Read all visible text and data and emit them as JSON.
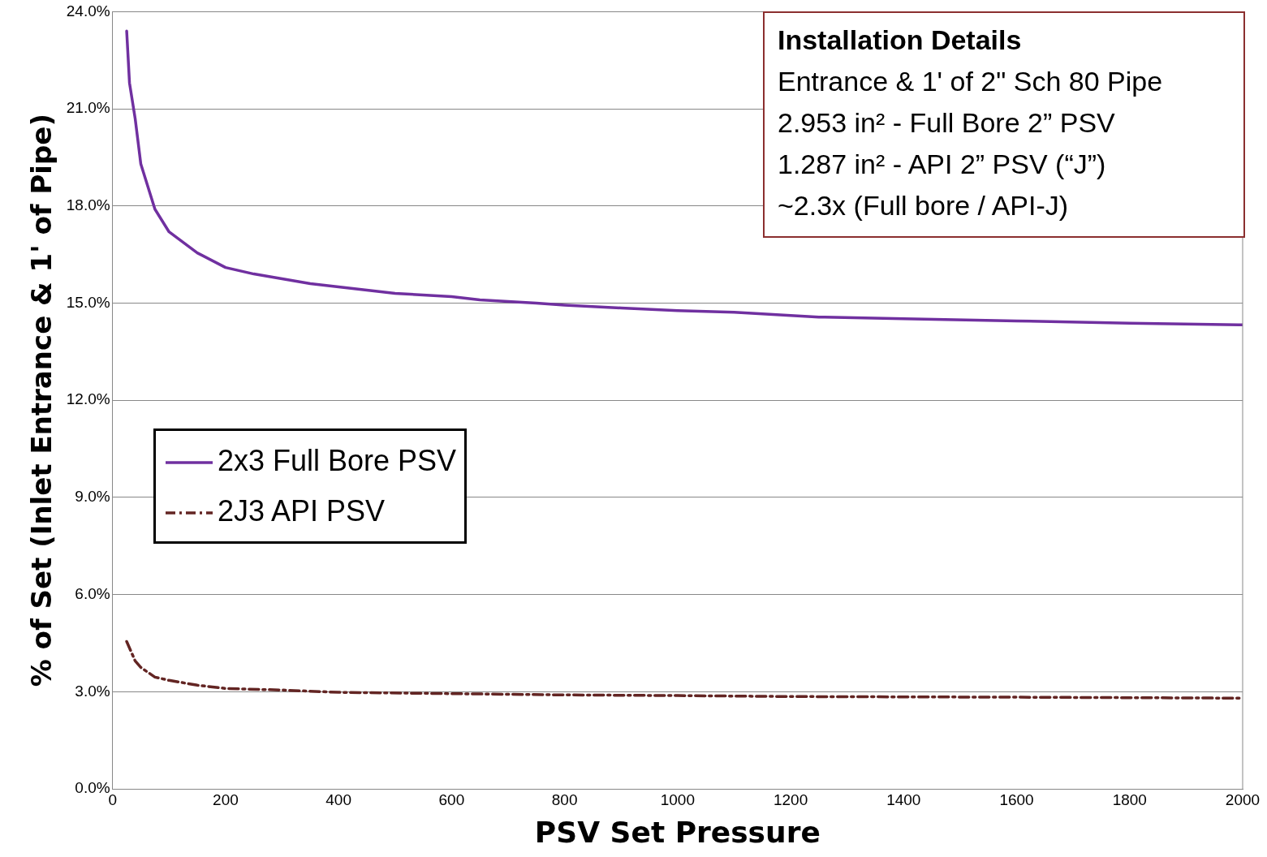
{
  "chart_data": {
    "type": "line",
    "xlabel": "PSV Set Pressure",
    "ylabel": "% of Set (Inlet Entrance & 1' of Pipe)",
    "xlim": [
      0,
      2000
    ],
    "xticks": [
      0,
      200,
      400,
      600,
      800,
      1000,
      1200,
      1400,
      1600,
      1800,
      2000
    ],
    "ylim": [
      0,
      24
    ],
    "yticks": [
      {
        "value": 0,
        "label": "0.0%"
      },
      {
        "value": 3,
        "label": "3.0%"
      },
      {
        "value": 6,
        "label": "6.0%"
      },
      {
        "value": 9,
        "label": "9.0%"
      },
      {
        "value": 12,
        "label": "12.0%"
      },
      {
        "value": 15,
        "label": "15.0%"
      },
      {
        "value": 18,
        "label": "18.0%"
      },
      {
        "value": 21,
        "label": "21.0%"
      },
      {
        "value": 24,
        "label": "24.0%"
      }
    ],
    "grid": "y",
    "legend": "left",
    "marker": "none",
    "annotations": [
      "Installation Details",
      "Entrance & 1' of 2\" Sch 80 Pipe",
      "2.953 in² - Full Bore 2” PSV",
      "1.287 in² - API 2” PSV (“J”)",
      "~2.3x (Full bore / API-J)"
    ],
    "series": [
      {
        "name": "2x3 Full Bore PSV",
        "color": "#7030a0",
        "line_style": "solid",
        "x": [
          25,
          30,
          40,
          50,
          75,
          100,
          150,
          200,
          250,
          300,
          350,
          400,
          500,
          600,
          650,
          700,
          750,
          800,
          900,
          1000,
          1100,
          1200,
          1250,
          1400,
          1600,
          1800,
          2000
        ],
        "values": [
          23.4,
          21.8,
          20.7,
          19.3,
          17.9,
          17.2,
          16.55,
          16.1,
          15.9,
          15.75,
          15.6,
          15.5,
          15.3,
          15.2,
          15.1,
          15.05,
          15.0,
          14.94,
          14.85,
          14.77,
          14.72,
          14.62,
          14.57,
          14.52,
          14.45,
          14.38,
          14.33
        ]
      },
      {
        "name": "2J3 API PSV",
        "color": "#632523",
        "line_style": "dashed",
        "x": [
          25,
          40,
          50,
          75,
          100,
          150,
          200,
          300,
          400,
          600,
          800,
          1000,
          1200,
          1600,
          2000
        ],
        "values": [
          4.55,
          3.95,
          3.75,
          3.45,
          3.35,
          3.2,
          3.1,
          3.05,
          2.98,
          2.94,
          2.9,
          2.88,
          2.85,
          2.83,
          2.8
        ]
      }
    ]
  }
}
